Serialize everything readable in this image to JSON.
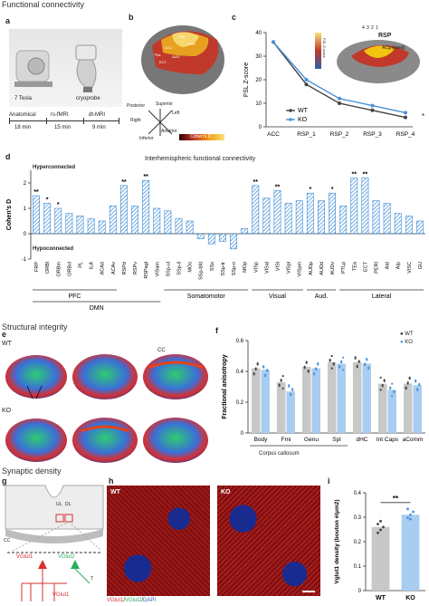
{
  "sections": {
    "functional": "Functional connectivity",
    "structural": "Structural integrity",
    "synaptic": "Synaptic density"
  },
  "panel_a": {
    "letter": "a",
    "devices": [
      "7 Tesla",
      "cryoprobe"
    ],
    "steps": [
      "Anatomical",
      "rs-fMRI",
      "dt-MRI"
    ],
    "durations": [
      "18 min",
      "15 min",
      "9 min"
    ]
  },
  "panel_b": {
    "letter": "b",
    "orientation": [
      "Posterior",
      "Superior",
      "Left",
      "Right",
      "Anterior",
      "Inferior"
    ],
    "region_labels": [
      "ACC",
      "VIS",
      "RSP",
      "ECT",
      "TEa",
      "AUD"
    ],
    "colorbar_label": "Cohen's D"
  },
  "panel_c": {
    "letter": "c",
    "inset_labels": [
      "RSP",
      "ACg (seed)"
    ],
    "inset_numbers": [
      "4",
      "3",
      "2",
      "1"
    ],
    "inset_scale_label": "FSL Z-score",
    "significance": "*"
  },
  "panel_d": {
    "letter": "d",
    "hyper": "Hyperconnected",
    "hypo": "Hypoconnected",
    "groups": [
      "PFC",
      "Somatomotor",
      "Visual",
      "Aud.",
      "Lateral"
    ],
    "supergroup": "DMN"
  },
  "panel_e": {
    "letter": "e",
    "rows": [
      "WT",
      "KO"
    ],
    "labels": [
      "CC",
      "aComm",
      "CC"
    ]
  },
  "panel_f": {
    "letter": "f",
    "group_label": "Corpus callosum",
    "legend": [
      "WT",
      "KO"
    ]
  },
  "panel_g": {
    "letter": "g",
    "labels": [
      "UL",
      "DL",
      "CC",
      "VGlut1",
      "VGlut2",
      "T",
      "VGlut1"
    ]
  },
  "panel_h": {
    "letter": "h",
    "tiles": [
      "WT",
      "KO"
    ],
    "caption_vglut1": "VGlut1",
    "caption_vglut2": "VGlut2",
    "caption_dapi": "DAPI",
    "sep": "/"
  },
  "panel_i": {
    "letter": "i",
    "significance": "**"
  },
  "colors": {
    "wt": "#444444",
    "ko": "#4a90d9",
    "bar_blue": "#3a8ad6",
    "bar_grey": "#c8c8c8",
    "bar_ko_light": "#a9cdf0"
  },
  "chart_data": [
    {
      "id": "c",
      "type": "line",
      "categories": [
        "ACC",
        "RSP_1",
        "RSP_2",
        "RSP_3",
        "RSP_4"
      ],
      "ylabel": "FSL Z-score",
      "ylim": [
        0,
        40
      ],
      "yticks": [
        0,
        10,
        20,
        30,
        40
      ],
      "series": [
        {
          "name": "WT",
          "values": [
            36,
            18,
            10,
            7,
            4
          ]
        },
        {
          "name": "KO",
          "values": [
            36,
            20,
            12,
            9,
            6
          ]
        }
      ]
    },
    {
      "id": "d",
      "type": "bar",
      "title": "Interhemispheric functional connectivity",
      "ylabel": "Cohen's D",
      "ylim": [
        -1,
        2.5
      ],
      "yticks": [
        -1,
        0,
        1,
        2
      ],
      "categories": [
        "FRP",
        "ORBl",
        "ORBm",
        "ORBvl",
        "PL",
        "ILA",
        "ACAd",
        "ACAv",
        "RSPd",
        "RSPv",
        "RSPagl",
        "VISam",
        "SSp-ul",
        "SSp-ll",
        "MOs",
        "SSp-bfd",
        "SSs",
        "SSp-tr",
        "SSp-n",
        "MOp",
        "VISp",
        "VISal",
        "VISl",
        "VISpl",
        "VISpm",
        "AUDp",
        "AUDd",
        "AUDv",
        "PTLp",
        "TEa",
        "ECT",
        "PERI",
        "AId",
        "AIp",
        "VISC",
        "GU"
      ],
      "values": [
        1.5,
        1.2,
        1.0,
        0.8,
        0.7,
        0.6,
        0.5,
        1.1,
        1.9,
        1.1,
        2.1,
        1.0,
        0.9,
        0.6,
        0.5,
        -0.2,
        -0.4,
        -0.3,
        -0.6,
        0.2,
        1.9,
        1.4,
        1.7,
        1.2,
        1.3,
        1.6,
        1.3,
        1.6,
        1.1,
        2.2,
        2.2,
        1.3,
        1.2,
        0.8,
        0.7,
        0.5
      ],
      "significance": [
        "**",
        "*",
        "*",
        "",
        "",
        "",
        "",
        "",
        "**",
        "",
        "**",
        "",
        "",
        "",
        "",
        "",
        "",
        "",
        "",
        "",
        "**",
        "",
        "**",
        "",
        "",
        "*",
        "",
        "*",
        "",
        "**",
        "**",
        "",
        "",
        "",
        "",
        ""
      ]
    },
    {
      "id": "f",
      "type": "bar",
      "ylabel": "Fractional anisotropy",
      "ylim": [
        0,
        0.6
      ],
      "yticks": [
        0,
        0.2,
        0.4,
        0.6
      ],
      "categories": [
        "Body",
        "Fmi",
        "Genu",
        "Spl",
        "dHC",
        "Int Caps",
        "aComm"
      ],
      "series": [
        {
          "name": "WT",
          "values": [
            0.42,
            0.33,
            0.43,
            0.46,
            0.46,
            0.32,
            0.32
          ]
        },
        {
          "name": "KO",
          "values": [
            0.41,
            0.27,
            0.42,
            0.45,
            0.45,
            0.28,
            0.31
          ]
        }
      ]
    },
    {
      "id": "i",
      "type": "bar",
      "ylabel": "Vglut1 density (bouton #/μm2)",
      "ylim": [
        0,
        0.4
      ],
      "yticks": [
        0,
        0.1,
        0.2,
        0.3,
        0.4
      ],
      "categories": [
        "WT",
        "KO"
      ],
      "values": [
        0.26,
        0.31
      ]
    }
  ]
}
